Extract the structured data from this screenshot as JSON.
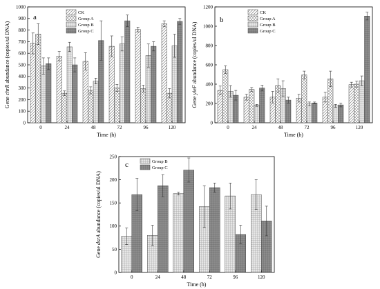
{
  "colors": {
    "CK": "#f4f4f4",
    "Group A": "#ececec",
    "Group B": "#dedede",
    "Group C": "#8a8a8a"
  },
  "chart_data": [
    {
      "type": "bar",
      "panel_label": "a",
      "categories": [
        "0",
        "24",
        "48",
        "72",
        "96",
        "120"
      ],
      "xlabel": "Time (h)",
      "ylabel_prefix": "Gene ",
      "ylabel_gene": "chrR",
      "ylabel_suffix": " abundance (copies/ul DNA)",
      "ylim": [
        0,
        1000
      ],
      "yticks": [
        0,
        100,
        200,
        300,
        400,
        500,
        600,
        700,
        800,
        900,
        1000
      ],
      "legend_position": "top-center",
      "series": [
        {
          "name": "CK",
          "pattern": "hatch-right",
          "values": [
            685,
            575,
            530,
            660,
            805,
            855
          ],
          "errors": [
            90,
            40,
            75,
            90,
            20,
            25
          ]
        },
        {
          "name": "Group A",
          "pattern": "cross",
          "values": [
            765,
            255,
            280,
            300,
            295,
            255
          ],
          "errors": [
            90,
            20,
            30,
            30,
            30,
            40
          ]
        },
        {
          "name": "Group B",
          "pattern": "grid",
          "values": [
            490,
            655,
            360,
            680,
            580,
            665
          ],
          "errors": [
            70,
            40,
            25,
            60,
            100,
            100
          ]
        },
        {
          "name": "Group C",
          "pattern": "dark",
          "values": [
            510,
            500,
            710,
            880,
            660,
            875
          ],
          "errors": [
            50,
            60,
            170,
            50,
            40,
            25
          ]
        }
      ]
    },
    {
      "type": "bar",
      "panel_label": "b",
      "categories": [
        "0",
        "24",
        "48",
        "72",
        "96",
        "120"
      ],
      "xlabel": "Time (h)",
      "ylabel_prefix": "Gene ",
      "ylabel_gene": "yieF",
      "ylabel_suffix": " abundance (copies/ul DNA)",
      "ylim": [
        0,
        1200
      ],
      "yticks": [
        0,
        200,
        400,
        600,
        800,
        1000,
        1200
      ],
      "legend_position": "top-center",
      "series": [
        {
          "name": "CK",
          "pattern": "hatch-right",
          "values": [
            335,
            265,
            265,
            255,
            265,
            395
          ],
          "errors": [
            45,
            30,
            60,
            40,
            50,
            25
          ]
        },
        {
          "name": "Group A",
          "pattern": "cross",
          "values": [
            550,
            345,
            385,
            495,
            455,
            400
          ],
          "errors": [
            40,
            20,
            70,
            40,
            80,
            30
          ]
        },
        {
          "name": "Group B",
          "pattern": "grid",
          "values": [
            325,
            180,
            355,
            195,
            175,
            435
          ],
          "errors": [
            60,
            10,
            80,
            20,
            15,
            50
          ]
        },
        {
          "name": "Group C",
          "pattern": "dark",
          "values": [
            285,
            360,
            235,
            205,
            185,
            1105
          ],
          "errors": [
            50,
            30,
            30,
            10,
            20,
            40
          ]
        }
      ]
    },
    {
      "type": "bar",
      "panel_label": "c",
      "categories": [
        "0",
        "24",
        "48",
        "72",
        "96",
        "120"
      ],
      "xlabel": "Time (h)",
      "ylabel_prefix": "Gene ",
      "ylabel_gene": "dsrA",
      "ylabel_suffix": " abundance (copies/ul DNA)",
      "ylim": [
        0,
        250
      ],
      "yticks": [
        0,
        50,
        100,
        150,
        200,
        250
      ],
      "legend_position": "top-left",
      "series": [
        {
          "name": "Group B",
          "pattern": "grid",
          "values": [
            78,
            80,
            170,
            142,
            165,
            168
          ],
          "errors": [
            18,
            22,
            3,
            45,
            28,
            32
          ]
        },
        {
          "name": "Group C",
          "pattern": "dark",
          "values": [
            168,
            187,
            221,
            183,
            82,
            111
          ],
          "errors": [
            35,
            24,
            26,
            10,
            20,
            32
          ]
        }
      ]
    }
  ]
}
